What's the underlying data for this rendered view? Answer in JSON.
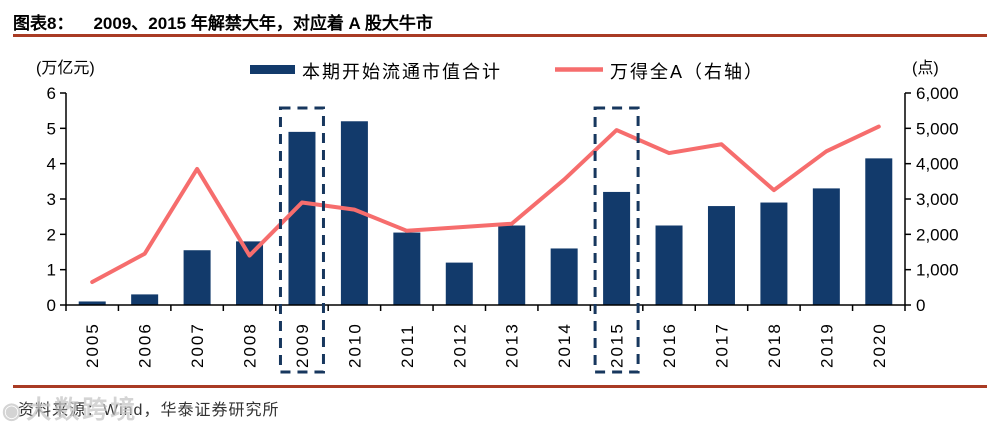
{
  "header": {
    "chart_label": "图表8：",
    "title": "2009、2015 年解禁大年，对应着 A 股大牛市"
  },
  "legend": {
    "bar_label": "本期开始流通市值合计",
    "line_label": "万得全A（右轴）"
  },
  "axes": {
    "left_unit": "(万亿元)",
    "right_unit": "(点)"
  },
  "colors": {
    "bar": "#123a6b",
    "line": "#f66d6d",
    "highlight_box": "#17375e",
    "rule": "#a93b24",
    "axis": "#000000"
  },
  "chart_data": {
    "type": "bar",
    "subtype": "combo-bar-line",
    "categories": [
      "2005",
      "2006",
      "2007",
      "2008",
      "2009",
      "2010",
      "2011",
      "2012",
      "2013",
      "2014",
      "2015",
      "2016",
      "2017",
      "2018",
      "2019",
      "2020"
    ],
    "series": [
      {
        "name": "本期开始流通市值合计",
        "type": "bar",
        "axis": "left",
        "values": [
          0.1,
          0.3,
          1.55,
          1.8,
          4.9,
          5.2,
          2.05,
          1.2,
          2.25,
          1.6,
          3.2,
          2.25,
          2.8,
          2.9,
          3.3,
          4.15
        ]
      },
      {
        "name": "万得全A（右轴）",
        "type": "line",
        "axis": "right",
        "values": [
          650,
          1450,
          3850,
          1400,
          2900,
          2700,
          2100,
          2200,
          2300,
          3550,
          4950,
          4300,
          4550,
          3250,
          4350,
          5050
        ]
      }
    ],
    "left_axis": {
      "label": "(万亿元)",
      "range": [
        0,
        6
      ],
      "tick_values": [
        0,
        1,
        2,
        3,
        4,
        5,
        6
      ],
      "tick_labels": [
        "0",
        "1",
        "2",
        "3",
        "4",
        "5",
        "6"
      ]
    },
    "right_axis": {
      "label": "(点)",
      "range": [
        0,
        6000
      ],
      "tick_values": [
        0,
        1000,
        2000,
        3000,
        4000,
        5000,
        6000
      ],
      "tick_labels": [
        "0",
        "1,000",
        "2,000",
        "3,000",
        "4,000",
        "5,000",
        "6,000"
      ]
    },
    "highlight_years": [
      "2009",
      "2015"
    ],
    "grid": false,
    "legend_position": "top"
  },
  "footer": {
    "source": "资料来源：Wind，华泰证券研究所",
    "watermark": "大数跨境"
  }
}
